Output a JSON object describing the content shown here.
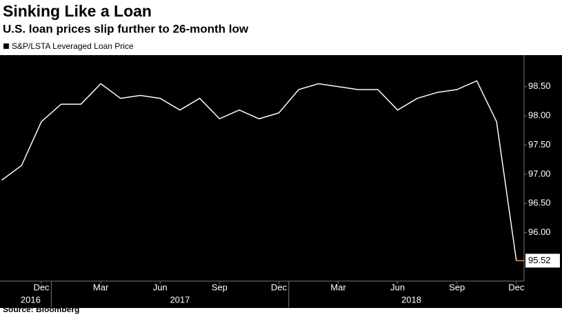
{
  "chart_data": {
    "type": "line",
    "title": "Sinking Like a Loan",
    "subtitle": "U.S. loan prices slip further to 26-month low",
    "source": "Source: Bloomberg",
    "x": [
      "2016-10",
      "2016-11",
      "2016-12",
      "2017-01",
      "2017-02",
      "2017-03",
      "2017-04",
      "2017-05",
      "2017-06",
      "2017-07",
      "2017-08",
      "2017-09",
      "2017-10",
      "2017-11",
      "2017-12",
      "2018-01",
      "2018-02",
      "2018-03",
      "2018-04",
      "2018-05",
      "2018-06",
      "2018-07",
      "2018-08",
      "2018-09",
      "2018-10",
      "2018-11",
      "2018-12"
    ],
    "series": [
      {
        "name": "S&P/LSTA Leveraged Loan Price",
        "color": "#ffffff",
        "values": [
          96.9,
          97.15,
          97.9,
          98.2,
          98.2,
          98.55,
          98.3,
          98.35,
          98.3,
          98.1,
          98.3,
          97.95,
          98.1,
          97.95,
          98.05,
          98.45,
          98.55,
          98.5,
          98.45,
          98.45,
          98.1,
          98.3,
          98.4,
          98.45,
          98.6,
          97.9,
          95.52
        ]
      }
    ],
    "last_value_color": "#f28c28",
    "ylim": [
      95.17,
      99.04
    ],
    "yticks": [
      {
        "value": 96,
        "label": "96.00"
      },
      {
        "value": 96.5,
        "label": "96.50"
      },
      {
        "value": 97,
        "label": "97.00"
      },
      {
        "value": 97.5,
        "label": "97.50"
      },
      {
        "value": 98,
        "label": "98.00"
      },
      {
        "value": 98.5,
        "label": "98.50"
      }
    ],
    "xticks": [
      {
        "value": "2016-12",
        "label": "Dec"
      },
      {
        "value": "2017-03",
        "label": "Mar"
      },
      {
        "value": "2017-06",
        "label": "Jun"
      },
      {
        "value": "2017-09",
        "label": "Sep"
      },
      {
        "value": "2017-12",
        "label": "Dec"
      },
      {
        "value": "2018-03",
        "label": "Mar"
      },
      {
        "value": "2018-06",
        "label": "Jun"
      },
      {
        "value": "2018-09",
        "label": "Sep"
      },
      {
        "value": "2018-12",
        "label": "Dec"
      }
    ],
    "years": [
      "2016",
      "2017",
      "2018"
    ]
  }
}
